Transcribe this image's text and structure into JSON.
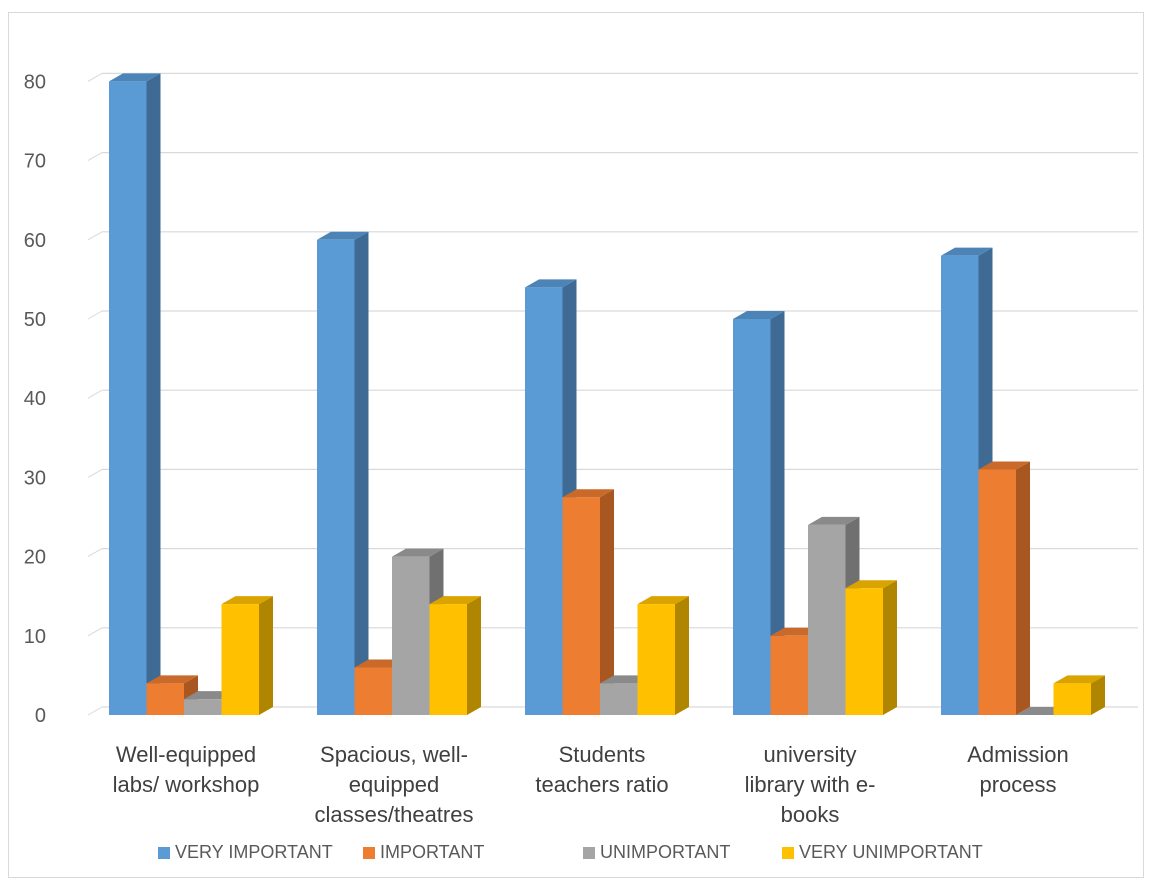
{
  "chart_data": {
    "type": "bar",
    "categories": [
      [
        "Well-equipped",
        "labs/ workshop"
      ],
      [
        "Spacious,  well-",
        "equipped",
        "classes/theatres"
      ],
      [
        "Students",
        "teachers ratio"
      ],
      [
        "university",
        "library with  e-",
        "books"
      ],
      [
        "Admission",
        "process"
      ]
    ],
    "series": [
      {
        "name": "VERY IMPORTANT",
        "values": [
          80,
          60,
          54,
          50,
          58
        ],
        "color": "#5b9bd5",
        "side": "#3e6a94",
        "top": "#4d84b8"
      },
      {
        "name": "IMPORTANT",
        "values": [
          4,
          6,
          27.5,
          10,
          31
        ],
        "color": "#ed7d31",
        "side": "#a85721",
        "top": "#c9692a"
      },
      {
        "name": "UNIMPORTANT",
        "values": [
          2,
          20,
          4,
          24,
          0
        ],
        "color": "#a5a5a5",
        "side": "#707070",
        "top": "#8a8a8a"
      },
      {
        "name": "VERY UNIMPORTANT",
        "values": [
          14,
          14,
          14,
          16,
          4
        ],
        "color": "#ffc000",
        "side": "#b08500",
        "top": "#d9a300"
      }
    ],
    "yticks": [
      0,
      10,
      20,
      30,
      40,
      50,
      60,
      70,
      80
    ],
    "ylim": [
      0,
      80
    ],
    "grid": true,
    "legend": "bottom"
  }
}
